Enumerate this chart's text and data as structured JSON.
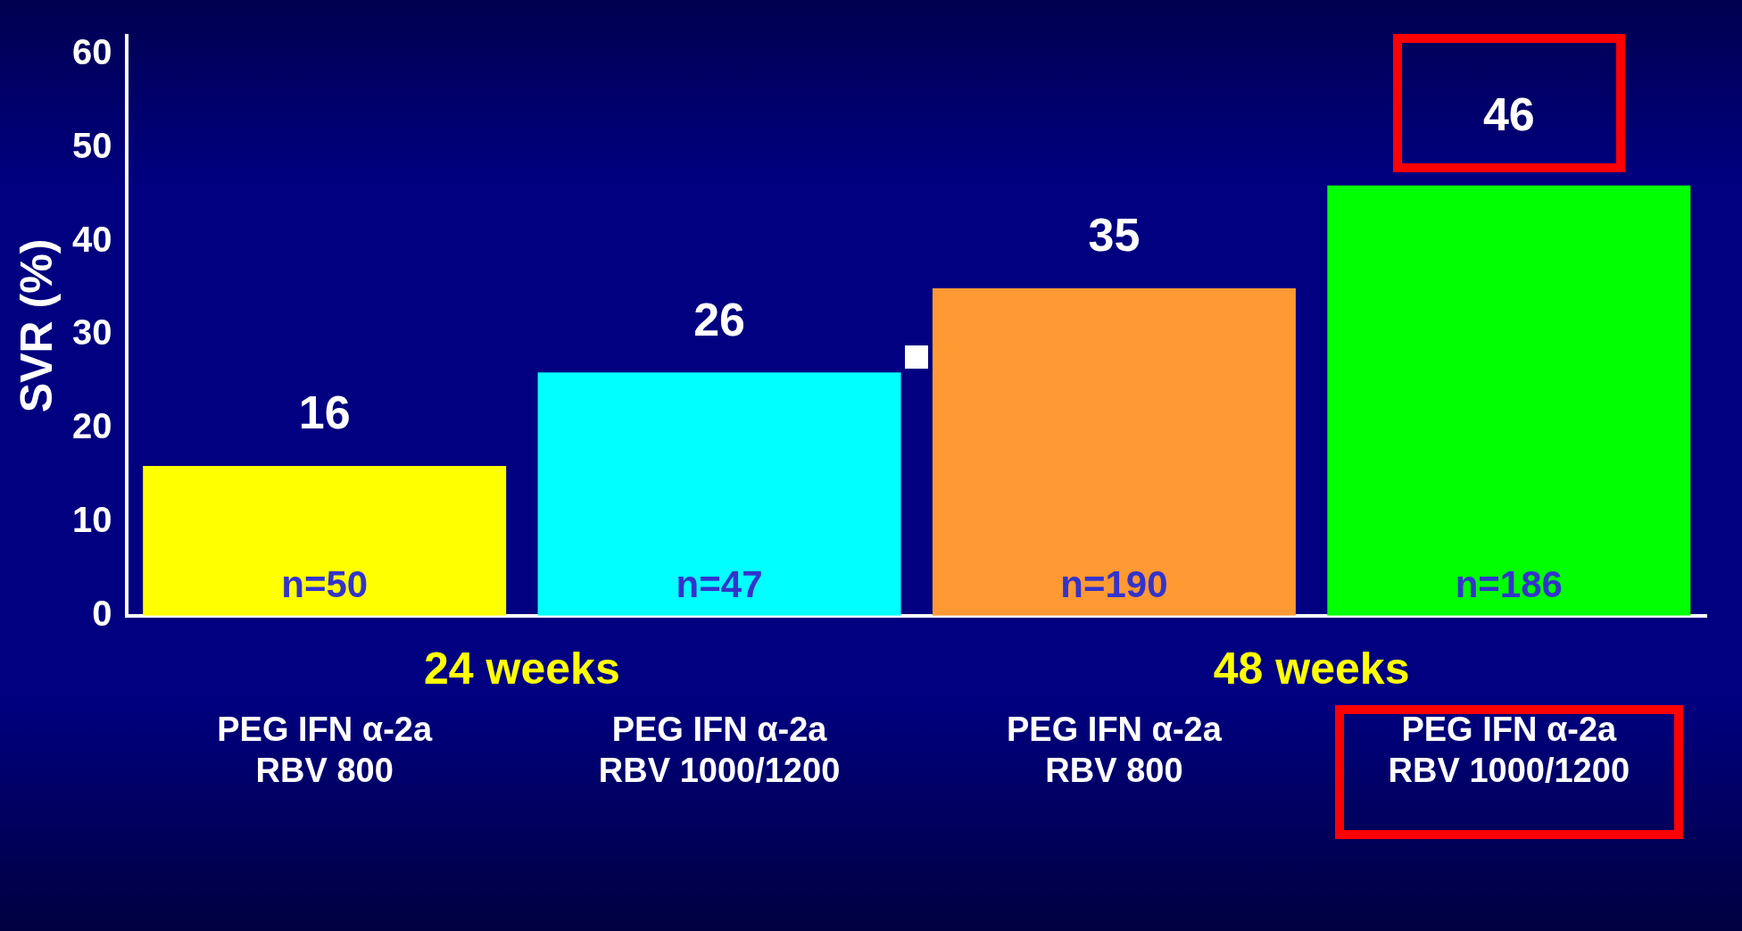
{
  "chart_data": {
    "type": "bar",
    "ylabel": "SVR (%)",
    "categories": [
      "PEG IFN α-2a\nRBV 800",
      "PEG IFN α-2a\nRBV 1000/1200",
      "PEG IFN α-2a\nRBV 800",
      "PEG IFN α-2a\nRBV 1000/1200"
    ],
    "values": [
      16,
      26,
      35,
      46
    ],
    "colors": [
      "#ffff00",
      "#00ffff",
      "#ff9933",
      "#00ff00"
    ],
    "ylim": [
      0,
      62
    ],
    "yticks": [
      0,
      10,
      20,
      30,
      40,
      50,
      60
    ],
    "grid": false,
    "legend": false,
    "data_labels": true,
    "annotations": [
      "n=50",
      "n=47",
      "n=190",
      "n=186",
      "24 weeks",
      "48 weeks"
    ]
  }
}
